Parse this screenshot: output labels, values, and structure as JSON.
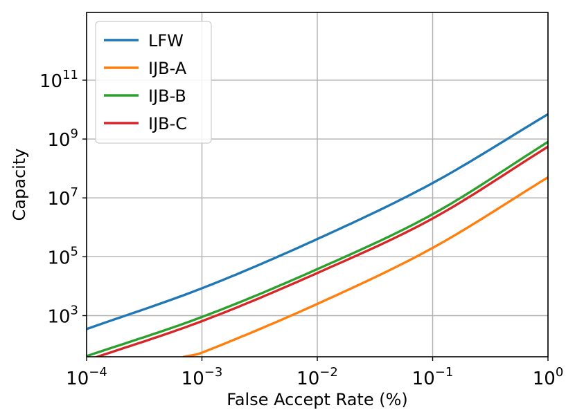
{
  "chart_data": {
    "type": "line",
    "title": "",
    "xlabel": "False Accept Rate (%)",
    "ylabel": "Capacity",
    "xscale": "log",
    "yscale": "log",
    "xlim": [
      0.0001,
      1
    ],
    "ylim": [
      40,
      20000000000000
    ],
    "xticks": [
      {
        "base": "10",
        "exp": "−4",
        "value": 0.0001
      },
      {
        "base": "10",
        "exp": "−3",
        "value": 0.001
      },
      {
        "base": "10",
        "exp": "−2",
        "value": 0.01
      },
      {
        "base": "10",
        "exp": "−1",
        "value": 0.1
      },
      {
        "base": "10",
        "exp": "0",
        "value": 1
      }
    ],
    "yticks": [
      {
        "base": "10",
        "exp": "3",
        "value": 1000
      },
      {
        "base": "10",
        "exp": "5",
        "value": 100000
      },
      {
        "base": "10",
        "exp": "7",
        "value": 10000000
      },
      {
        "base": "10",
        "exp": "9",
        "value": 1000000000
      },
      {
        "base": "10",
        "exp": "11",
        "value": 100000000000
      }
    ],
    "grid": true,
    "legend_position": "top-left",
    "series": [
      {
        "name": "LFW",
        "color": "#1f77b4",
        "x": [
          0.0001,
          0.001,
          0.01,
          0.1,
          1
        ],
        "y": [
          350,
          8500,
          400000,
          32000000,
          7000000000
        ]
      },
      {
        "name": "IJB-A",
        "color": "#ff7f0e",
        "x": [
          0.0007,
          0.001,
          0.01,
          0.1,
          1
        ],
        "y": [
          40,
          55,
          2500,
          200000,
          50000000
        ]
      },
      {
        "name": "IJB-B",
        "color": "#2ca02c",
        "x": [
          0.0001,
          0.001,
          0.01,
          0.1,
          1
        ],
        "y": [
          42,
          900,
          38000,
          2800000,
          800000000
        ]
      },
      {
        "name": "IJB-C",
        "color": "#d62728",
        "x": [
          0.0001,
          0.001,
          0.01,
          0.1,
          1
        ],
        "y": [
          30,
          650,
          28000,
          2000000,
          550000000
        ]
      }
    ]
  }
}
